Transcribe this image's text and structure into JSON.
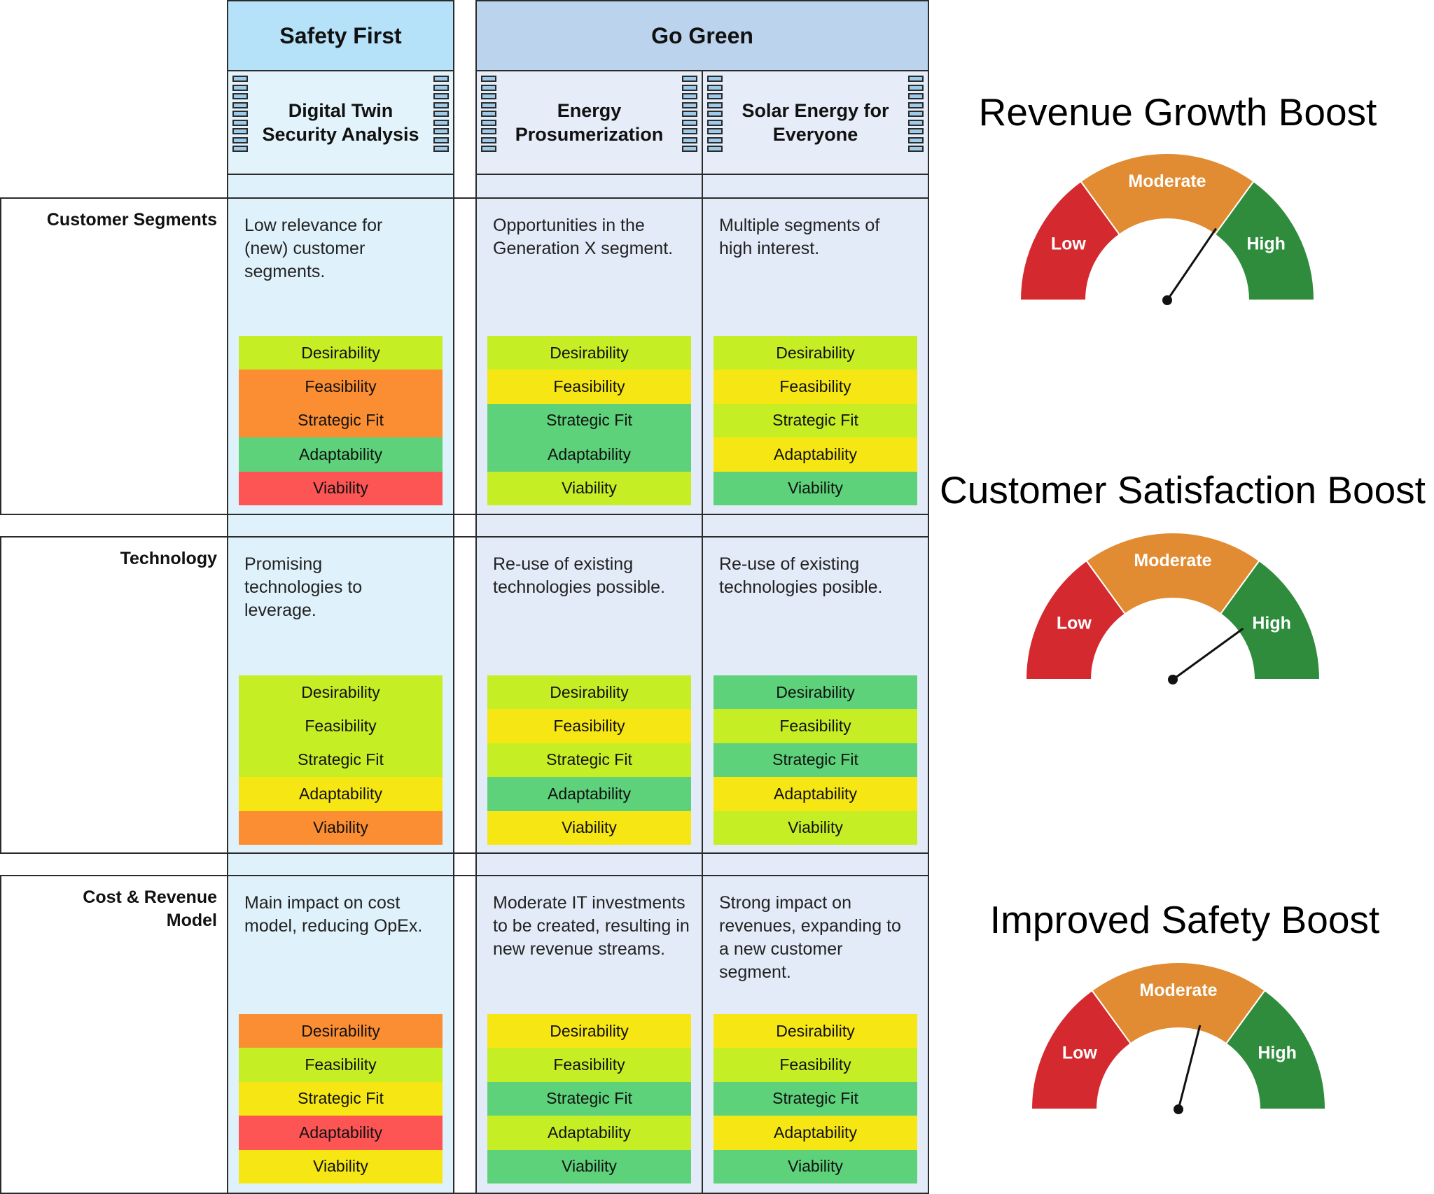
{
  "colors": {
    "green": "#5dd27a",
    "light_green": "#c6ee24",
    "yellow": "#f6e714",
    "orange": "#fb8e32",
    "red": "#fd5454",
    "gauge_low": "#d42a2f",
    "gauge_moderate": "#e18c32",
    "gauge_high": "#2e8c3c"
  },
  "groups": [
    {
      "title": "Safety First"
    },
    {
      "title": "Go Green"
    }
  ],
  "columns": [
    {
      "title": "Digital Twin Security Analysis",
      "icon": "list-icon"
    },
    {
      "title": "Energy Prosumerization",
      "icon": "list-icon"
    },
    {
      "title": "Solar Energy for Everyone",
      "icon": "list-icon"
    }
  ],
  "rows": [
    {
      "label": "Customer Segments",
      "cells": [
        {
          "text": "Low relevance for (new) customer segments.",
          "ratings": [
            {
              "label": "Desirability",
              "level": "light_green"
            },
            {
              "label": "Feasibility",
              "level": "orange"
            },
            {
              "label": "Strategic Fit",
              "level": "orange"
            },
            {
              "label": "Adaptability",
              "level": "green"
            },
            {
              "label": "Viability",
              "level": "red"
            }
          ]
        },
        {
          "text": "Opportunities in the Generation X segment.",
          "ratings": [
            {
              "label": "Desirability",
              "level": "light_green"
            },
            {
              "label": "Feasibility",
              "level": "yellow"
            },
            {
              "label": "Strategic Fit",
              "level": "green"
            },
            {
              "label": "Adaptability",
              "level": "green"
            },
            {
              "label": "Viability",
              "level": "light_green"
            }
          ]
        },
        {
          "text": "Multiple segments of high interest.",
          "ratings": [
            {
              "label": "Desirability",
              "level": "light_green"
            },
            {
              "label": "Feasibility",
              "level": "yellow"
            },
            {
              "label": "Strategic Fit",
              "level": "light_green"
            },
            {
              "label": "Adaptability",
              "level": "yellow"
            },
            {
              "label": "Viability",
              "level": "green"
            }
          ]
        }
      ]
    },
    {
      "label": "Technology",
      "cells": [
        {
          "text": "Promising technologies to leverage.",
          "ratings": [
            {
              "label": "Desirability",
              "level": "light_green"
            },
            {
              "label": "Feasibility",
              "level": "light_green"
            },
            {
              "label": "Strategic Fit",
              "level": "light_green"
            },
            {
              "label": "Adaptability",
              "level": "yellow"
            },
            {
              "label": "Viability",
              "level": "orange"
            }
          ]
        },
        {
          "text": "Re-use of existing technologies possible.",
          "ratings": [
            {
              "label": "Desirability",
              "level": "light_green"
            },
            {
              "label": "Feasibility",
              "level": "yellow"
            },
            {
              "label": "Strategic Fit",
              "level": "light_green"
            },
            {
              "label": "Adaptability",
              "level": "green"
            },
            {
              "label": "Viability",
              "level": "yellow"
            }
          ]
        },
        {
          "text": "Re-use of existing technologies posible.",
          "ratings": [
            {
              "label": "Desirability",
              "level": "green"
            },
            {
              "label": "Feasibility",
              "level": "light_green"
            },
            {
              "label": "Strategic Fit",
              "level": "green"
            },
            {
              "label": "Adaptability",
              "level": "yellow"
            },
            {
              "label": "Viability",
              "level": "light_green"
            }
          ]
        }
      ]
    },
    {
      "label": "Cost & Revenue Model",
      "cells": [
        {
          "text": "Main impact on cost model, reducing OpEx.",
          "ratings": [
            {
              "label": "Desirability",
              "level": "orange"
            },
            {
              "label": "Feasibility",
              "level": "light_green"
            },
            {
              "label": "Strategic Fit",
              "level": "yellow"
            },
            {
              "label": "Adaptability",
              "level": "red"
            },
            {
              "label": "Viability",
              "level": "yellow"
            }
          ]
        },
        {
          "text": "Moderate IT investments to be created, resulting in new revenue streams.",
          "ratings": [
            {
              "label": "Desirability",
              "level": "yellow"
            },
            {
              "label": "Feasibility",
              "level": "light_green"
            },
            {
              "label": "Strategic Fit",
              "level": "green"
            },
            {
              "label": "Adaptability",
              "level": "light_green"
            },
            {
              "label": "Viability",
              "level": "green"
            }
          ]
        },
        {
          "text": "Strong impact on revenues, expanding to a new customer segment.",
          "ratings": [
            {
              "label": "Desirability",
              "level": "yellow"
            },
            {
              "label": "Feasibility",
              "level": "light_green"
            },
            {
              "label": "Strategic Fit",
              "level": "green"
            },
            {
              "label": "Adaptability",
              "level": "yellow"
            },
            {
              "label": "Viability",
              "level": "green"
            }
          ]
        }
      ]
    }
  ],
  "gauges": [
    {
      "title": "Revenue Growth Boost",
      "low": "Low",
      "moderate": "Moderate",
      "high": "High",
      "needle_fraction": 0.69
    },
    {
      "title": "Customer Satisfaction Boost",
      "low": "Low",
      "moderate": "Moderate",
      "high": "High",
      "needle_fraction": 0.8
    },
    {
      "title": "Improved Safety Boost",
      "low": "Low",
      "moderate": "Moderate",
      "high": "High",
      "needle_fraction": 0.58
    }
  ]
}
